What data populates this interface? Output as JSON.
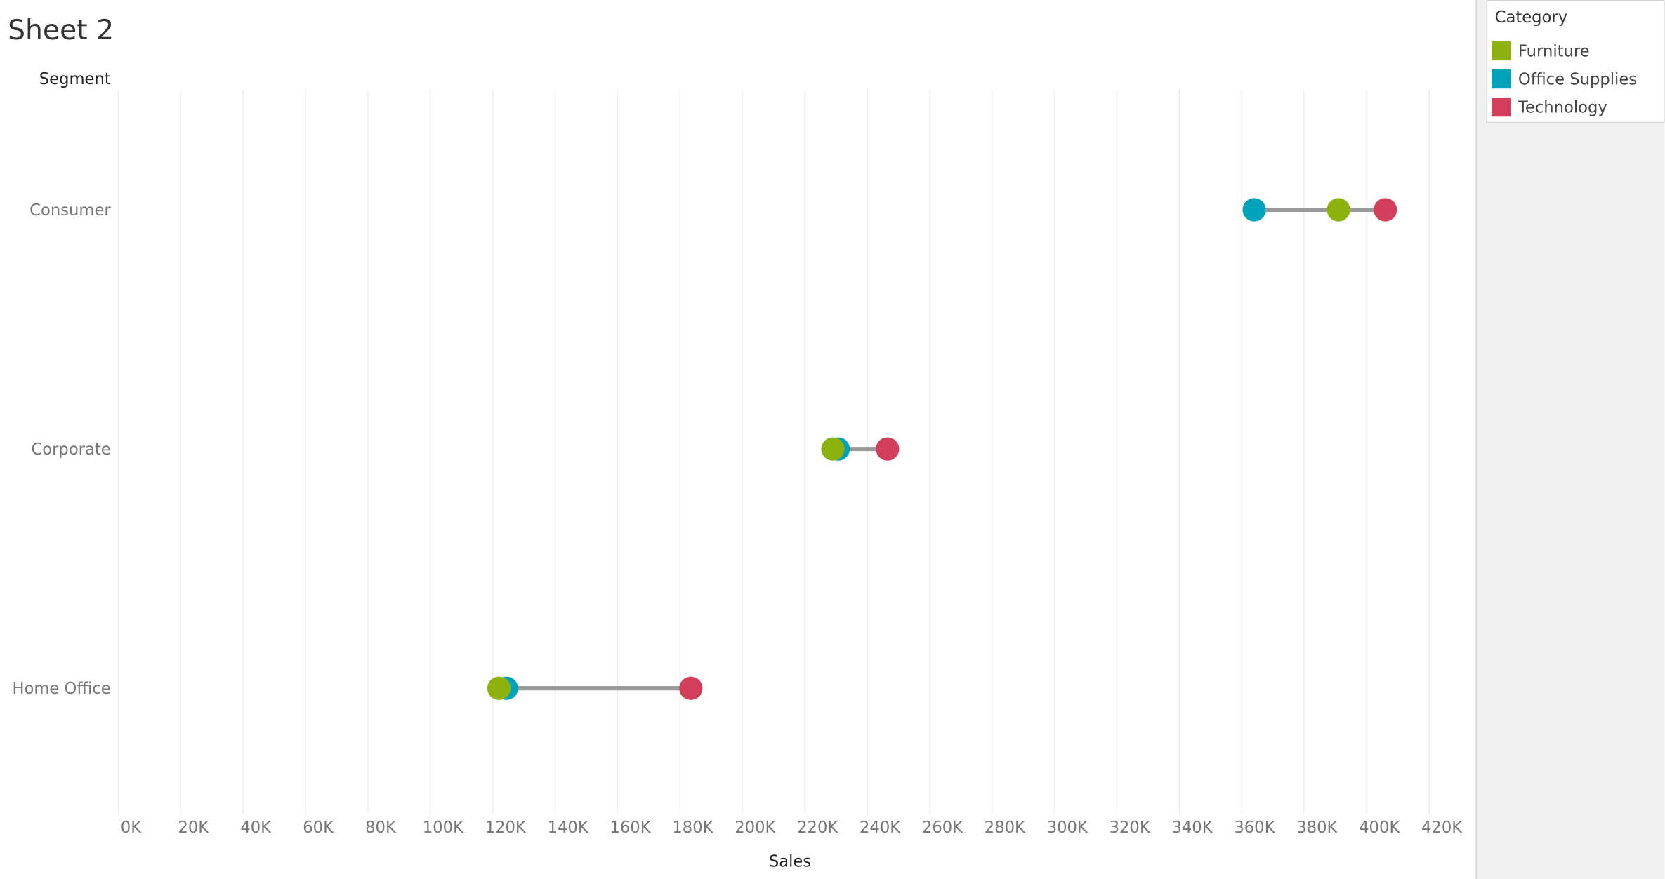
{
  "chart_data": {
    "type": "dumbbell",
    "title": "Sheet 2",
    "y_axis_title": "Segment",
    "x_axis_title": "Sales",
    "legend_title": "Category",
    "legend_position": "top-right",
    "grid": true,
    "connector_color": "#999999",
    "categories": [
      "Consumer",
      "Corporate",
      "Home Office"
    ],
    "series": [
      {
        "name": "Furniture",
        "color": "#8db20e",
        "values": [
          391000,
          229000,
          122000
        ]
      },
      {
        "name": "Office Supplies",
        "color": "#00a3b9",
        "values": [
          364000,
          230700,
          124400
        ]
      },
      {
        "name": "Technology",
        "color": "#d23f5b",
        "values": [
          406000,
          246500,
          183500
        ]
      }
    ],
    "xlim": [
      0,
      430000
    ],
    "xticks": [
      {
        "value": 0,
        "label": "0K"
      },
      {
        "value": 20000,
        "label": "20K"
      },
      {
        "value": 40000,
        "label": "40K"
      },
      {
        "value": 60000,
        "label": "60K"
      },
      {
        "value": 80000,
        "label": "80K"
      },
      {
        "value": 100000,
        "label": "100K"
      },
      {
        "value": 120000,
        "label": "120K"
      },
      {
        "value": 140000,
        "label": "140K"
      },
      {
        "value": 160000,
        "label": "160K"
      },
      {
        "value": 180000,
        "label": "180K"
      },
      {
        "value": 200000,
        "label": "200K"
      },
      {
        "value": 220000,
        "label": "220K"
      },
      {
        "value": 240000,
        "label": "240K"
      },
      {
        "value": 260000,
        "label": "260K"
      },
      {
        "value": 280000,
        "label": "280K"
      },
      {
        "value": 300000,
        "label": "300K"
      },
      {
        "value": 320000,
        "label": "320K"
      },
      {
        "value": 340000,
        "label": "340K"
      },
      {
        "value": 360000,
        "label": "360K"
      },
      {
        "value": 380000,
        "label": "380K"
      },
      {
        "value": 400000,
        "label": "400K"
      },
      {
        "value": 420000,
        "label": "420K"
      }
    ]
  }
}
